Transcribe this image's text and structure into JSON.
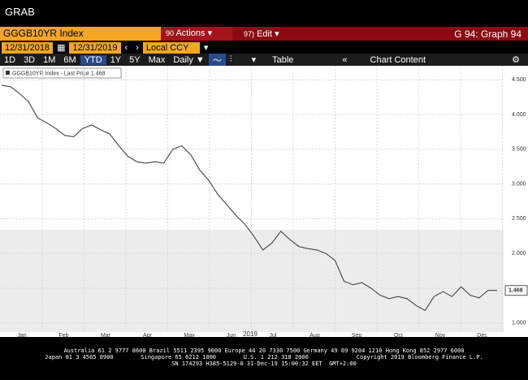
{
  "window": {
    "title": "GRAB"
  },
  "toolbar": {
    "ticker": "GGGB10YR Index",
    "actions_num": "90",
    "actions": "Actions",
    "edit_num": "97)",
    "edit": "Edit",
    "page": "G 94: Graph 94",
    "start_date": "12/31/2018",
    "end_date": "12/31/2019",
    "currency": "Local CCY",
    "periods": [
      "1D",
      "3D",
      "1M",
      "6M",
      "YTD",
      "1Y",
      "5Y",
      "Max"
    ],
    "frequency": "Daily",
    "table": "Table",
    "chart_content": "Chart Content"
  },
  "chart_data": {
    "type": "line",
    "series": [
      {
        "name": "GGGB10YR Index - Last Price",
        "color": "#444444",
        "values": [
          4.42,
          4.4,
          4.3,
          4.18,
          3.95,
          3.88,
          3.8,
          3.7,
          3.68,
          3.8,
          3.85,
          3.78,
          3.72,
          3.55,
          3.4,
          3.32,
          3.3,
          3.32,
          3.3,
          3.5,
          3.55,
          3.42,
          3.2,
          3.05,
          2.85,
          2.7,
          2.55,
          2.42,
          2.25,
          2.05,
          2.15,
          2.32,
          2.2,
          2.1,
          2.07,
          2.05,
          2.0,
          1.9,
          1.6,
          1.55,
          1.58,
          1.5,
          1.4,
          1.35,
          1.38,
          1.35,
          1.25,
          1.18,
          1.38,
          1.45,
          1.38,
          1.52,
          1.4,
          1.36,
          1.47,
          1.468
        ]
      }
    ],
    "xtick_labels": [
      "Jan",
      "Feb",
      "Mar",
      "Apr",
      "May",
      "Jun",
      "Jul",
      "Aug",
      "Sep",
      "Oct",
      "Nov",
      "Dec"
    ],
    "year_label": "2019",
    "ylim": [
      0.88,
      4.69
    ],
    "yticks": [
      {
        "value": 1,
        "label": "1.000"
      },
      {
        "value": 1.5,
        "label": "1.500"
      },
      {
        "value": 2,
        "label": "2.000"
      },
      {
        "value": 2.5,
        "label": "2.500"
      },
      {
        "value": 3,
        "label": "3.000"
      },
      {
        "value": 3.5,
        "label": "3.500"
      },
      {
        "value": 4,
        "label": "4.000"
      },
      {
        "value": 4.5,
        "label": "4.500"
      }
    ],
    "grid": true
  },
  "footer": {
    "lines": [
      "Australia 61 2 9777 8600 Brazil 5511 2395 9000 Europe 44 20 7330 7500 Germany 49 69 9204 1210 Hong Kong 852 2977 6000",
      "Japan 81 3 4565 8900        Singapore 65 6212 1000        U.S. 1 212 318 2000              Copyright 2019 Bloomberg Finance L.P.",
      "SN 174293 H385-5129-0 31-Dec-19 15:00:32 EET  GMT+2:00"
    ]
  }
}
